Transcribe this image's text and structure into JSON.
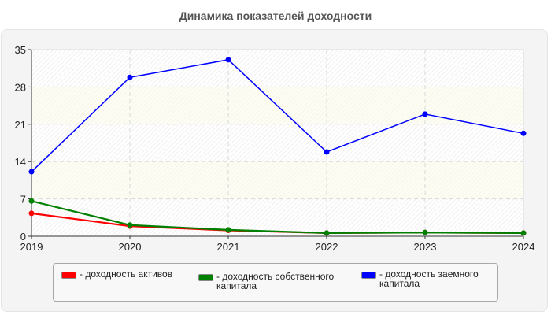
{
  "chart_data": {
    "type": "line",
    "title": "Динамика показателей доходности",
    "xlabel": "",
    "ylabel": "",
    "categories": [
      "2019",
      "2020",
      "2021",
      "2022",
      "2023",
      "2024"
    ],
    "ylim": [
      0,
      35
    ],
    "yticks": [
      "0",
      "7",
      "14",
      "21",
      "28",
      "35"
    ],
    "grid": true,
    "legend_position": "bottom",
    "series": [
      {
        "name": "доходность активов",
        "color": "#ff0000",
        "values": [
          4.3,
          1.9,
          1.1,
          0.6,
          0.7,
          0.6
        ]
      },
      {
        "name": "доходность собственного капитала",
        "color": "#008000",
        "values": [
          6.6,
          2.1,
          1.2,
          0.6,
          0.7,
          0.6
        ]
      },
      {
        "name": "доходность заемного капитала",
        "color": "#0000ff",
        "values": [
          12.1,
          29.8,
          33.1,
          15.8,
          22.9,
          19.3
        ]
      }
    ]
  },
  "legend": {
    "items": [
      {
        "label": "- доходность активов",
        "color": "#ff0000"
      },
      {
        "label": "- доходность собственного капитала",
        "color": "#008000"
      },
      {
        "label": "- доходность заемного капитала",
        "color": "#0000ff"
      }
    ]
  }
}
